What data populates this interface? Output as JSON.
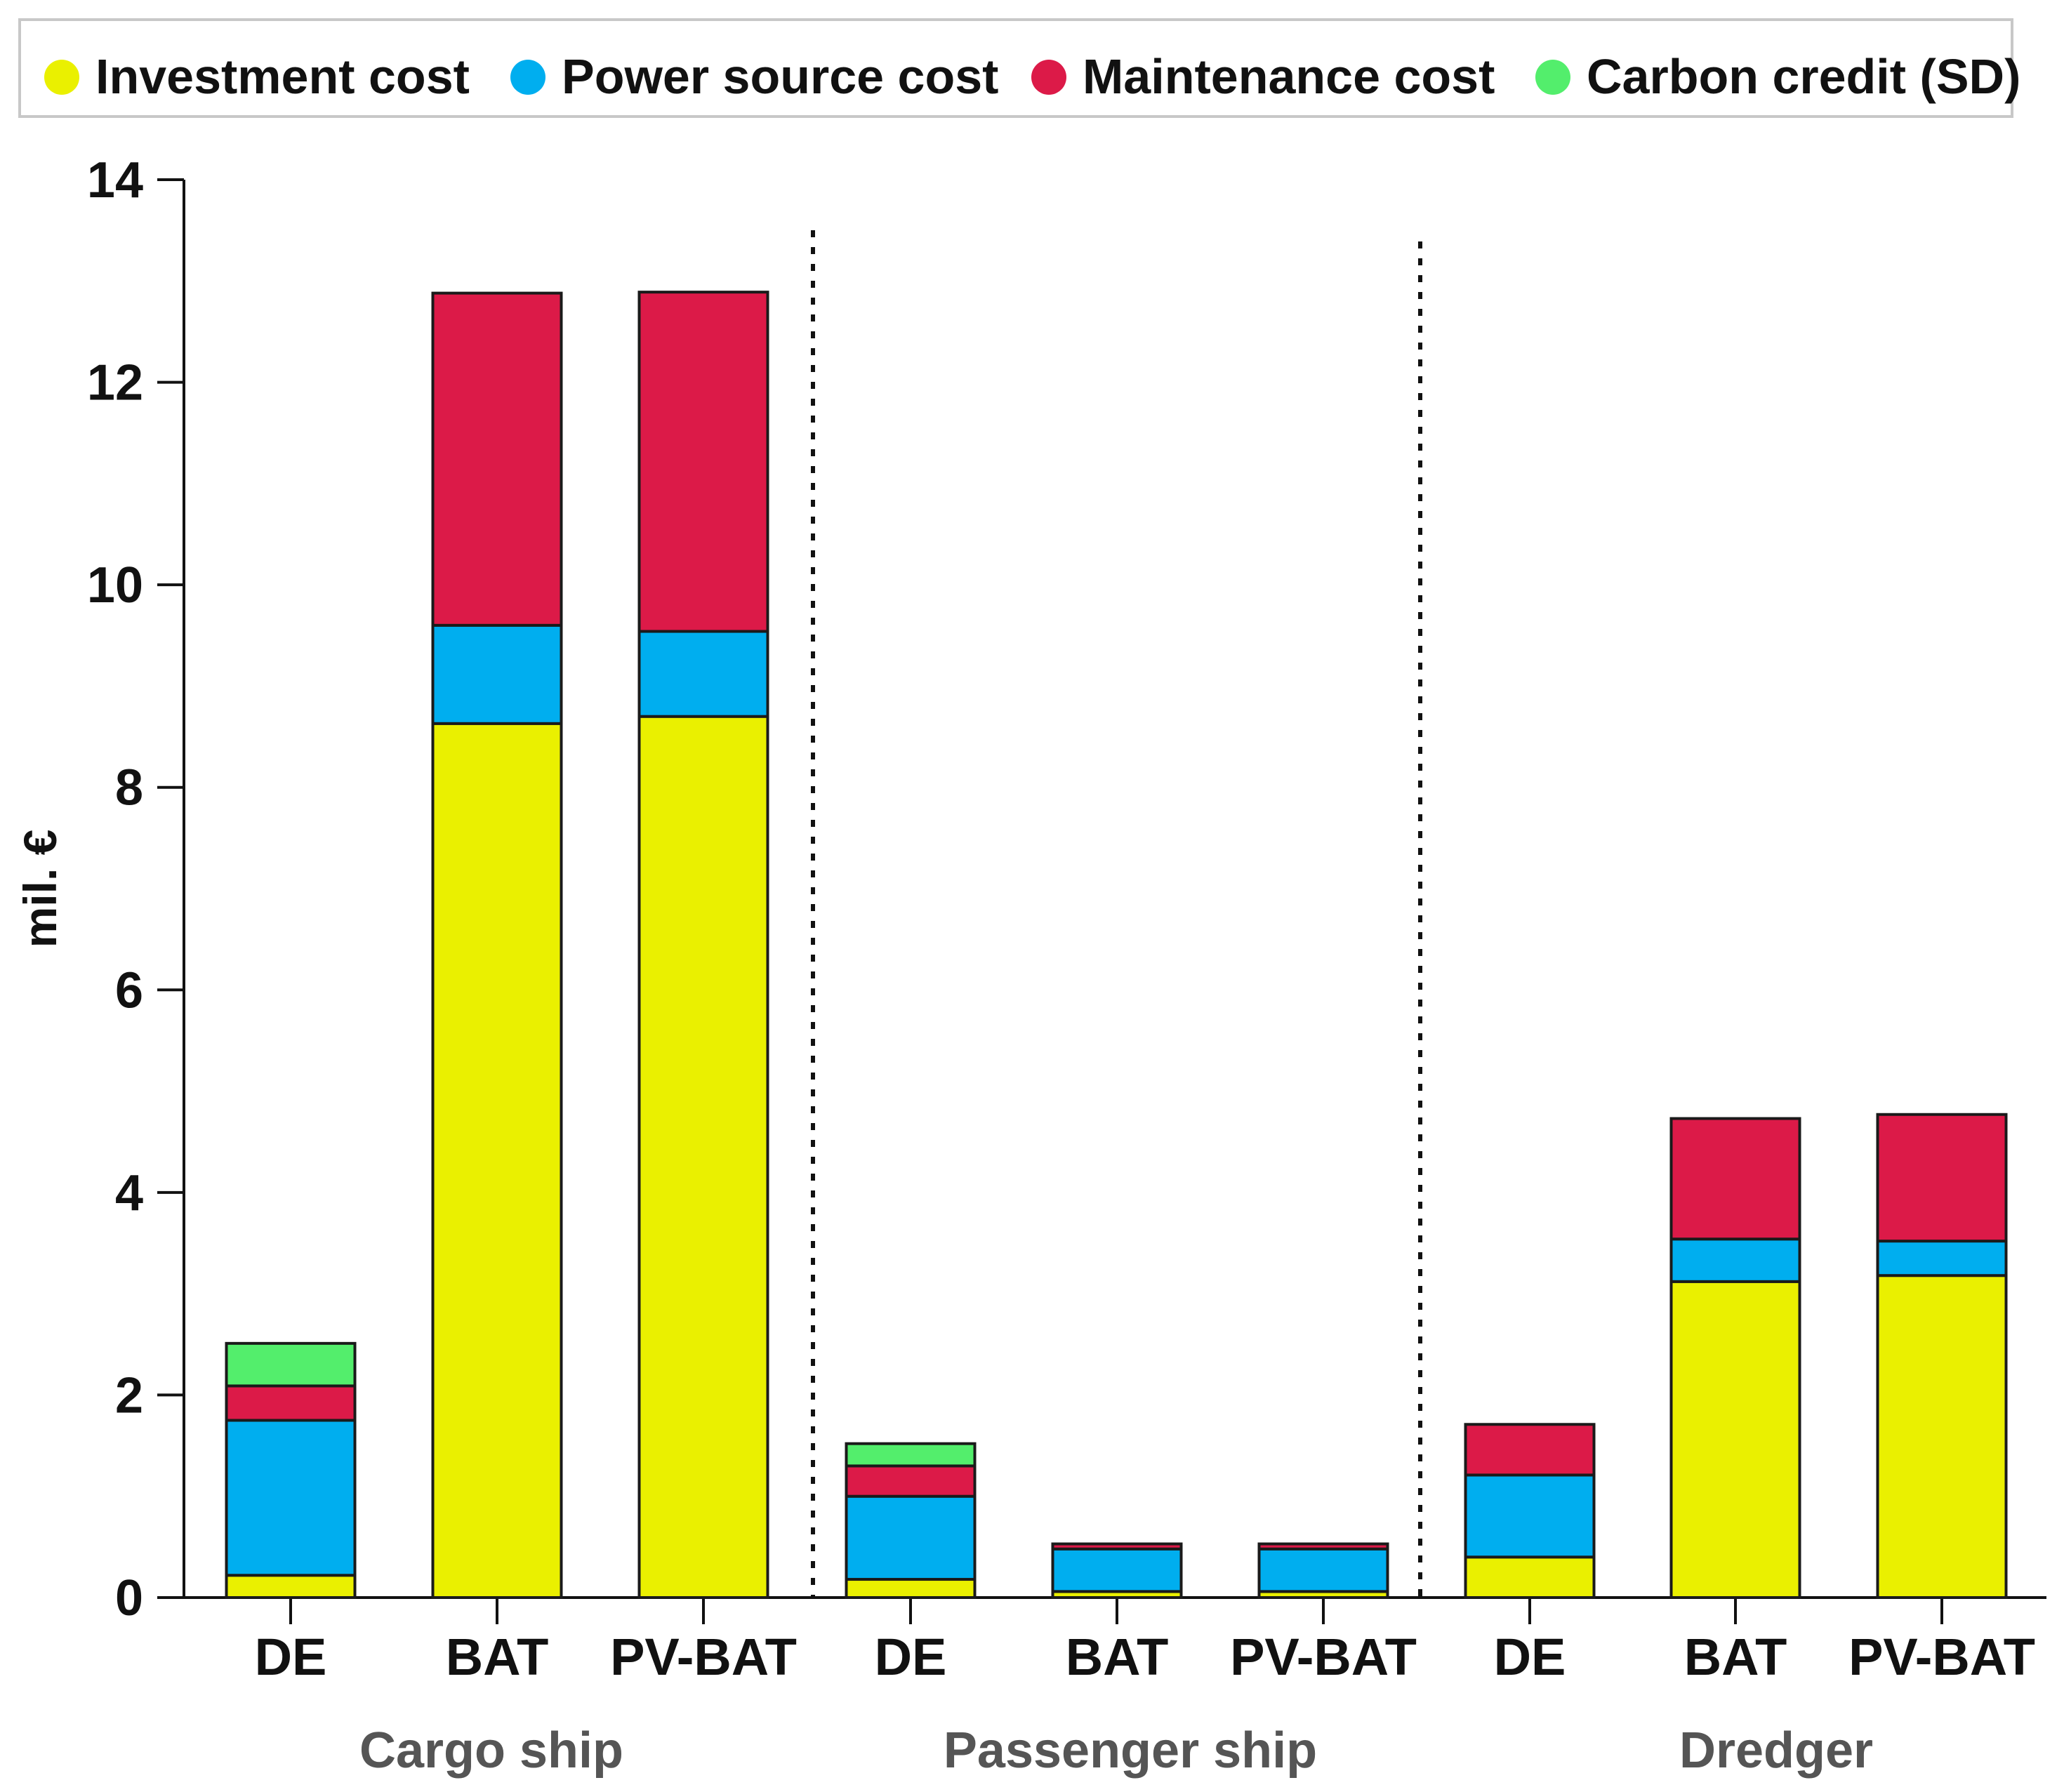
{
  "chart_data": {
    "type": "bar",
    "stacked": true,
    "title": "",
    "xlabel": "",
    "ylabel": "mil. €",
    "ylim": [
      0,
      14
    ],
    "yticks": [
      0,
      2,
      4,
      6,
      8,
      10,
      12,
      14
    ],
    "groups": [
      {
        "name": "Cargo ship",
        "categories": [
          "DE",
          "BAT",
          "PV-BAT"
        ]
      },
      {
        "name": "Passenger ship",
        "categories": [
          "DE",
          "BAT",
          "PV-BAT"
        ]
      },
      {
        "name": "Dredger",
        "categories": [
          "DE",
          "BAT",
          "PV-BAT"
        ]
      }
    ],
    "categories": [
      "DE",
      "BAT",
      "PV-BAT",
      "DE",
      "BAT",
      "PV-BAT",
      "DE",
      "BAT",
      "PV-BAT"
    ],
    "series": [
      {
        "name": "Investment cost",
        "color": "#eaf000",
        "values": [
          0.22,
          8.63,
          8.7,
          0.18,
          0.06,
          0.06,
          0.4,
          3.12,
          3.18
        ]
      },
      {
        "name": "Power source cost",
        "color": "#00aeef",
        "values": [
          1.53,
          0.97,
          0.84,
          0.82,
          0.42,
          0.42,
          0.81,
          0.42,
          0.34
        ]
      },
      {
        "name": "Maintenance cost",
        "color": "#dc1a48",
        "values": [
          0.34,
          3.28,
          3.35,
          0.3,
          0.05,
          0.05,
          0.5,
          1.19,
          1.25
        ]
      },
      {
        "name": "Carbon credit (SD)",
        "color": "#53ee6c",
        "values": [
          0.42,
          0.0,
          0.0,
          0.22,
          0.0,
          0.0,
          0.0,
          0.0,
          0.0
        ]
      }
    ],
    "separators": "dotted vertical lines between groups",
    "legend_position": "top"
  }
}
